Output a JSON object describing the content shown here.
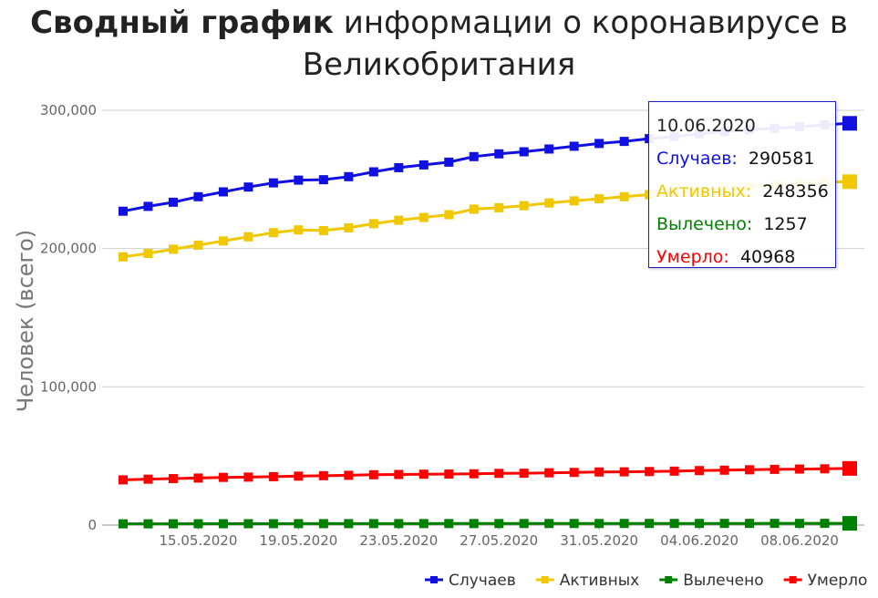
{
  "title": {
    "bold": "Сводный график",
    "rest": " информации о коронавирусе в Великобритания"
  },
  "tooltip": {
    "date": "10.06.2020",
    "rows": [
      {
        "label": "Случаев:",
        "value": "290581",
        "color": "#1010e0"
      },
      {
        "label": "Активных:",
        "value": "248356",
        "color": "#f0c800"
      },
      {
        "label": "Вылечено:",
        "value": "1257",
        "color": "#008000"
      },
      {
        "label": "Умерло:",
        "value": "40968",
        "color": "#ff0000"
      }
    ]
  },
  "chart_data": {
    "type": "line",
    "ylabel": "Человек (всего)",
    "ylim": [
      0,
      300000
    ],
    "yticks": [
      "0",
      "100,000",
      "200,000",
      "300,000"
    ],
    "ytick_values": [
      0,
      100000,
      200000,
      300000
    ],
    "xtick_labels": [
      "15.05.2020",
      "19.05.2020",
      "23.05.2020",
      "27.05.2020",
      "31.05.2020",
      "04.06.2020",
      "08.06.2020"
    ],
    "xtick_indices": [
      3,
      7,
      11,
      15,
      19,
      23,
      27
    ],
    "x": [
      "12.05.2020",
      "13.05.2020",
      "14.05.2020",
      "15.05.2020",
      "16.05.2020",
      "17.05.2020",
      "18.05.2020",
      "19.05.2020",
      "20.05.2020",
      "21.05.2020",
      "22.05.2020",
      "23.05.2020",
      "24.05.2020",
      "25.05.2020",
      "26.05.2020",
      "27.05.2020",
      "28.05.2020",
      "29.05.2020",
      "30.05.2020",
      "31.05.2020",
      "01.06.2020",
      "02.06.2020",
      "03.06.2020",
      "04.06.2020",
      "05.06.2020",
      "06.06.2020",
      "07.06.2020",
      "08.06.2020",
      "09.06.2020",
      "10.06.2020"
    ],
    "legend_position": "bottom-right",
    "series": [
      {
        "name": "Случаев",
        "color": "#1010e0",
        "values": [
          227000,
          230500,
          233500,
          237500,
          241000,
          244500,
          247500,
          249500,
          249800,
          252000,
          255500,
          258500,
          260500,
          262500,
          266500,
          268500,
          270000,
          272000,
          274000,
          276000,
          277500,
          279500,
          281000,
          283000,
          284500,
          286000,
          287000,
          288000,
          289500,
          290581
        ]
      },
      {
        "name": "Активных",
        "color": "#f0c800",
        "values": [
          194000,
          196500,
          199500,
          202500,
          205500,
          208500,
          211500,
          213500,
          213000,
          215000,
          218000,
          220500,
          222500,
          224500,
          228500,
          229500,
          231000,
          233000,
          234500,
          236000,
          237500,
          239000,
          240500,
          242000,
          243500,
          245000,
          246000,
          247000,
          248000,
          248356
        ]
      },
      {
        "name": "Вылечено",
        "color": "#008000",
        "values": [
          900,
          920,
          940,
          960,
          980,
          1000,
          1020,
          1030,
          1040,
          1050,
          1060,
          1070,
          1080,
          1090,
          1100,
          1110,
          1120,
          1130,
          1140,
          1150,
          1160,
          1170,
          1180,
          1190,
          1200,
          1210,
          1220,
          1230,
          1240,
          1257
        ]
      },
      {
        "name": "Умерло",
        "color": "#ff0000",
        "values": [
          32700,
          33200,
          33600,
          34000,
          34500,
          34700,
          35000,
          35400,
          35700,
          36000,
          36400,
          36600,
          36800,
          36900,
          37100,
          37400,
          37500,
          37800,
          38100,
          38400,
          38500,
          38700,
          39000,
          39400,
          39700,
          40000,
          40300,
          40500,
          40700,
          40968
        ]
      }
    ]
  }
}
